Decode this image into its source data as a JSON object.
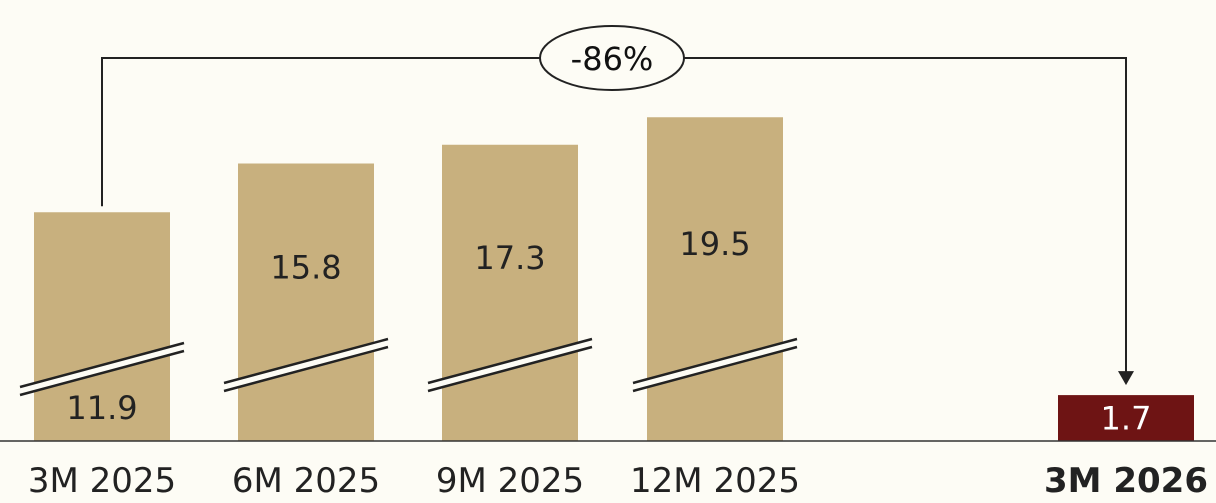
{
  "chart_data": {
    "type": "bar",
    "categories": [
      "3M 2025",
      "6M 2025",
      "9M 2025",
      "12M 2025",
      "3M 2026"
    ],
    "values": [
      11.9,
      15.8,
      17.3,
      19.5,
      1.7
    ],
    "value_labels": [
      "11.9",
      "15.8",
      "17.3",
      "19.5",
      "1.7"
    ],
    "axis_break": true,
    "highlight_index": 4,
    "colors": {
      "bar": "#c8b07e",
      "highlight": "#6e1414",
      "axis": "#333333",
      "background": "#fdfcf5"
    },
    "annotation": {
      "text": "-86%",
      "from_category": "3M 2025",
      "to_category": "3M 2026"
    }
  }
}
